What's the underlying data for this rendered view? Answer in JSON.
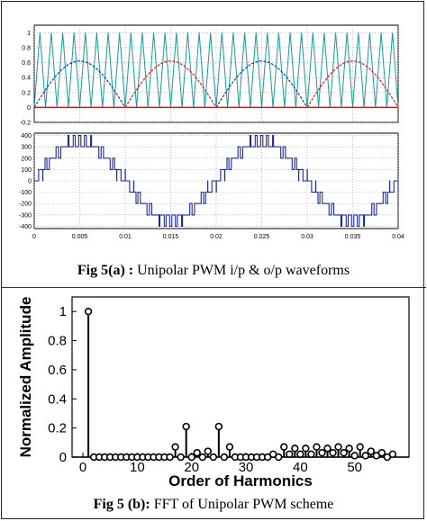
{
  "captions": {
    "fig_a_bold": "Fig 5(a) :",
    "fig_a_text": " Unipolar PWM i/p  & o/p waveforms",
    "fig_b_bold": "Fig 5 (b):",
    "fig_b_text": " FFT of Unipolar PWM scheme"
  },
  "chart_data": [
    {
      "type": "line",
      "name": "input-waveforms",
      "xlim": [
        0,
        0.04
      ],
      "ylim": [
        -0.2,
        1.1
      ],
      "yticks": [
        -0.2,
        0,
        0.2,
        0.4,
        0.6,
        0.8,
        1
      ],
      "ytick_labels": [
        "-0.2",
        "0",
        "0.2",
        "0.4",
        "0.6",
        "0.8",
        "1"
      ],
      "grid": true,
      "carrier": {
        "type": "triangle",
        "min": 0,
        "max": 1,
        "cycles": 32,
        "color": "#1a9a9a"
      },
      "references": [
        {
          "type": "abs-sine",
          "amplitude": 0.62,
          "frequency_hz": 50,
          "color": "#2233aa",
          "phase": 0
        },
        {
          "type": "abs-sine",
          "amplitude": 0.62,
          "frequency_hz": 50,
          "color": "#cc2222",
          "phase": 0.01
        }
      ],
      "baseline": {
        "value": 0,
        "color": "#dd1111"
      }
    },
    {
      "type": "line",
      "name": "output-waveform",
      "xlim": [
        0,
        0.04
      ],
      "ylim": [
        -420,
        420
      ],
      "yticks": [
        -400,
        -300,
        -200,
        -100,
        0,
        100,
        200,
        300,
        400
      ],
      "ytick_labels": [
        "-400",
        "-300",
        "-200",
        "-100",
        "0",
        "100",
        "200",
        "300",
        "400"
      ],
      "xticks": [
        0,
        0.005,
        0.01,
        0.015,
        0.02,
        0.025,
        0.03,
        0.035,
        0.04
      ],
      "xtick_labels": [
        "0",
        "0.005",
        "0.01",
        "0.015",
        "0.02",
        "0.025",
        "0.03",
        "0.035",
        "0.04"
      ],
      "grid": true,
      "levels": [
        0,
        100,
        200,
        300,
        400
      ],
      "color": "#1a2a9a"
    },
    {
      "type": "scatter",
      "name": "harmonic-spectrum",
      "marker": "stem",
      "xlabel": "Order of Harmonics",
      "ylabel": "Normalized Amplitude",
      "xlim": [
        -2,
        60
      ],
      "ylim": [
        0,
        1.1
      ],
      "xticks": [
        0,
        10,
        20,
        30,
        40,
        50
      ],
      "yticks": [
        0,
        0.2,
        0.4,
        0.6,
        0.8,
        1
      ],
      "ytick_labels": [
        "0",
        "0.2",
        "0.4",
        "0.6",
        "0.8",
        "1"
      ],
      "x": [
        1,
        2,
        3,
        4,
        5,
        6,
        7,
        8,
        9,
        10,
        11,
        12,
        13,
        14,
        15,
        16,
        17,
        18,
        19,
        20,
        21,
        22,
        23,
        24,
        25,
        26,
        27,
        28,
        29,
        30,
        31,
        32,
        33,
        34,
        35,
        36,
        37,
        38,
        39,
        40,
        41,
        42,
        43,
        44,
        45,
        46,
        47,
        48,
        49,
        50,
        51,
        52,
        53,
        54,
        55,
        56,
        57
      ],
      "values": [
        1.0,
        0,
        0,
        0,
        0,
        0,
        0,
        0,
        0,
        0,
        0,
        0,
        0,
        0,
        0,
        0,
        0.07,
        0,
        0.21,
        0,
        0.03,
        0,
        0.04,
        0,
        0.21,
        0,
        0.07,
        0,
        0,
        0,
        0,
        0,
        0,
        0,
        0.02,
        0,
        0.07,
        0.02,
        0.06,
        0.02,
        0.06,
        0.02,
        0.07,
        0.03,
        0.06,
        0.03,
        0.07,
        0.03,
        0.06,
        0.01,
        0.07,
        0.01,
        0.04,
        0.01,
        0.03,
        0,
        0.02
      ]
    }
  ]
}
